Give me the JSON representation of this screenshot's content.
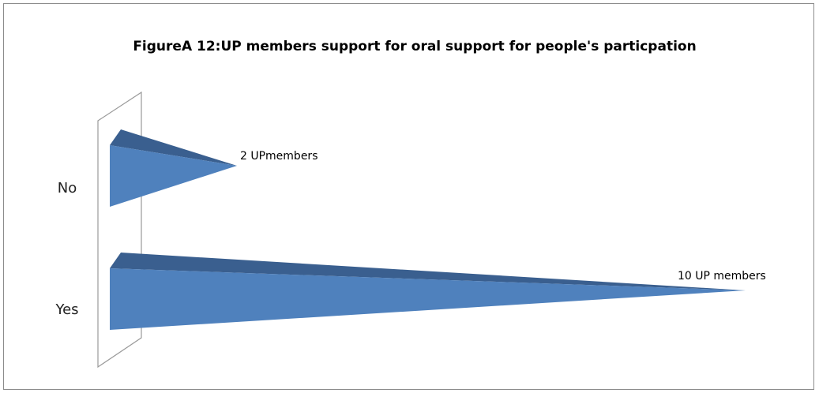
{
  "chart_data": {
    "type": "bar",
    "orientation": "horizontal",
    "shape": "3d-pyramid",
    "title": "FigureA 12:UP members support for oral support for people's particpation",
    "xlabel": "",
    "ylabel": "",
    "categories": [
      "No",
      "Yes"
    ],
    "values": [
      2,
      10
    ],
    "data_labels": [
      "2 UPmembers",
      "10 UP members"
    ],
    "xlim": [
      0,
      10.5
    ],
    "grid": false,
    "legend": "none",
    "colors": {
      "bar_front": "#4f81bd",
      "bar_top": "#3a5f8f",
      "wall_stroke": "#9a9a9a"
    }
  }
}
